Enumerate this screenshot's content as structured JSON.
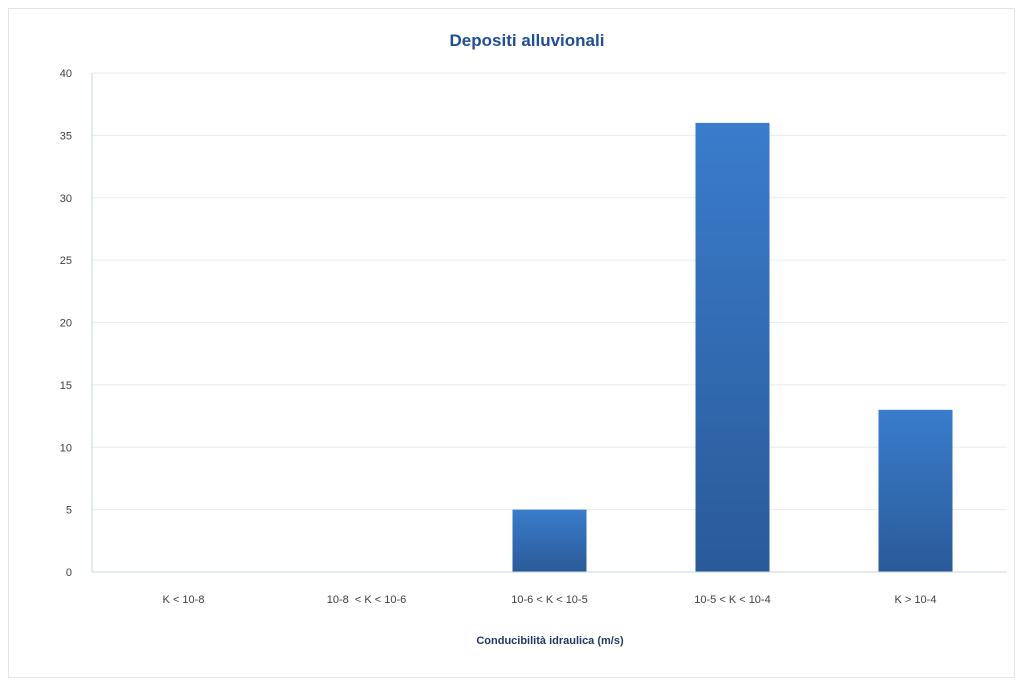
{
  "chart_data": {
    "type": "bar",
    "title": "Depositi alluvionali",
    "xlabel": "Conducibilità idraulica (m/s)",
    "ylabel": "",
    "categories": [
      "K < 10-8",
      "10-8  < K < 10-6",
      "10-6 < K < 10-5",
      "10-5 < K < 10-4",
      "K > 10-4"
    ],
    "values": [
      0,
      0,
      5,
      36,
      13
    ],
    "ylim": [
      0,
      40
    ],
    "yticks": [
      0,
      5,
      10,
      15,
      20,
      25,
      30,
      35,
      40
    ],
    "grid": true,
    "legend": "none",
    "colors": {
      "bar_top": "#3a7ccc",
      "bar_bottom": "#2a5a98",
      "title": "#1f4e96"
    }
  }
}
